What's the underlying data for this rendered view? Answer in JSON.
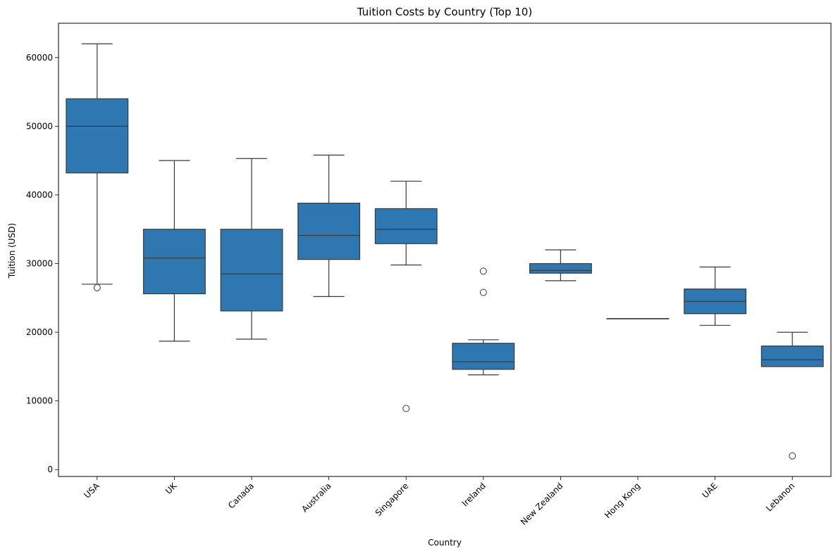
{
  "colors": {
    "box_fill": "#2e77b1",
    "line": "#3a3a3a",
    "frame": "#000000",
    "background": "#ffffff"
  },
  "chart_data": {
    "type": "box",
    "title": "Tuition Costs by Country (Top 10)",
    "xlabel": "Country",
    "ylabel": "Tuition (USD)",
    "ylim": [
      -1000,
      65000
    ],
    "yticks": [
      0,
      10000,
      20000,
      30000,
      40000,
      50000,
      60000
    ],
    "grid": false,
    "categories": [
      "USA",
      "UK",
      "Canada",
      "Australia",
      "Singapore",
      "Ireland",
      "New Zealand",
      "Hong Kong",
      "UAE",
      "Lebanon"
    ],
    "boxes": [
      {
        "category": "USA",
        "whisker_low": 27000,
        "q1": 43200,
        "median": 50000,
        "q3": 54000,
        "whisker_high": 62000,
        "outliers": [
          26500
        ]
      },
      {
        "category": "UK",
        "whisker_low": 18700,
        "q1": 25600,
        "median": 30800,
        "q3": 35000,
        "whisker_high": 45000,
        "outliers": []
      },
      {
        "category": "Canada",
        "whisker_low": 19000,
        "q1": 23100,
        "median": 28500,
        "q3": 35000,
        "whisker_high": 45300,
        "outliers": []
      },
      {
        "category": "Australia",
        "whisker_low": 25200,
        "q1": 30600,
        "median": 34100,
        "q3": 38800,
        "whisker_high": 45800,
        "outliers": []
      },
      {
        "category": "Singapore",
        "whisker_low": 29800,
        "q1": 32900,
        "median": 35000,
        "q3": 38000,
        "whisker_high": 42000,
        "outliers": [
          8900
        ]
      },
      {
        "category": "Ireland",
        "whisker_low": 13800,
        "q1": 14600,
        "median": 15700,
        "q3": 18400,
        "whisker_high": 18900,
        "outliers": [
          25800,
          28900
        ]
      },
      {
        "category": "New Zealand",
        "whisker_low": 27500,
        "q1": 28600,
        "median": 29000,
        "q3": 30000,
        "whisker_high": 32000,
        "outliers": []
      },
      {
        "category": "Hong Kong",
        "whisker_low": 22000,
        "q1": 22000,
        "median": 22000,
        "q3": 22000,
        "whisker_high": 22000,
        "outliers": []
      },
      {
        "category": "UAE",
        "whisker_low": 21000,
        "q1": 22700,
        "median": 24500,
        "q3": 26300,
        "whisker_high": 29500,
        "outliers": []
      },
      {
        "category": "Lebanon",
        "whisker_low": 15000,
        "q1": 15000,
        "median": 16000,
        "q3": 18000,
        "whisker_high": 20000,
        "outliers": [
          2000
        ]
      }
    ]
  }
}
